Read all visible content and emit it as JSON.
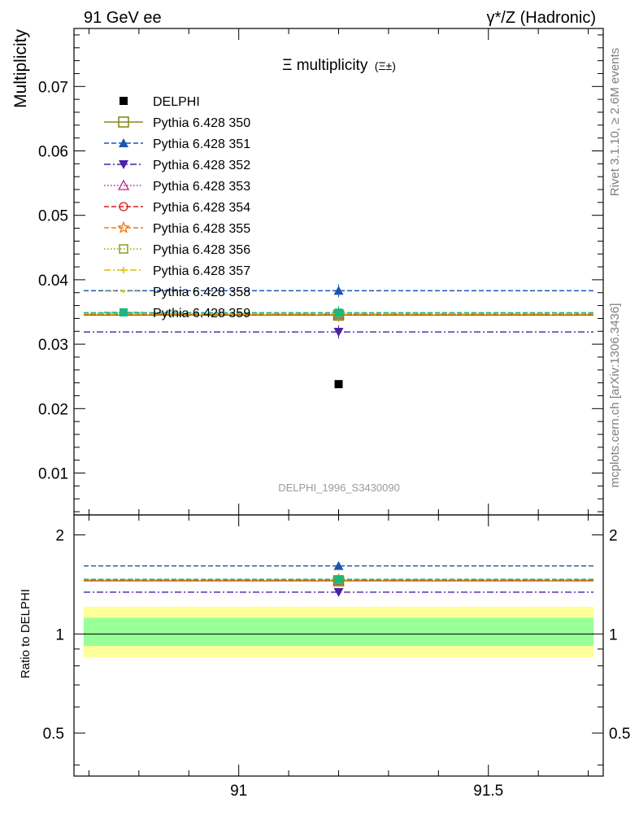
{
  "header": {
    "left": "91 GeV ee",
    "right": "γ*/Z (Hadronic)"
  },
  "side_labels": {
    "rivet": "Rivet 3.1.10, ≥ 2.6M events",
    "mcplots": "mcplots.cern.ch [arXiv:1306.3436]"
  },
  "chart_data": {
    "type": "scatter",
    "title": "Ξ multiplicity",
    "title_suffix": "(Ξ±)",
    "analysis_id": "DELPHI_1996_S3430090",
    "x_range": [
      90.67,
      91.73
    ],
    "x_point": 91.2,
    "main": {
      "ylabel": "Multiplicity",
      "ylim": [
        0.0035,
        0.079
      ],
      "y_ticks": [
        "0.01",
        "0.02",
        "0.03",
        "0.04",
        "0.05",
        "0.06",
        "0.07"
      ],
      "y_tick_values": [
        0.01,
        0.02,
        0.03,
        0.04,
        0.05,
        0.06,
        0.07
      ]
    },
    "ratio": {
      "ylabel": "Ratio to DELPHI",
      "ylim": [
        0.37,
        2.3
      ],
      "y_ticks": [
        "0.5",
        "1",
        "2"
      ],
      "y_tick_values": [
        0.5,
        1.0,
        2.0
      ],
      "band_inner": [
        0.92,
        1.12
      ],
      "band_outer": [
        0.85,
        1.21
      ]
    },
    "x_ticks": [
      "91",
      "91.5"
    ],
    "x_tick_values": [
      91.0,
      91.5
    ],
    "data": {
      "name": "DELPHI",
      "y": 0.0238
    },
    "series": [
      {
        "name": "Pythia 6.428 350",
        "y": 0.0345,
        "ratio": 1.45,
        "color": "#8a8a1a",
        "dash": "solid",
        "marker": "square-open"
      },
      {
        "name": "Pythia 6.428 351",
        "y": 0.0383,
        "ratio": 1.61,
        "color": "#1a56b0",
        "dash": "dashed",
        "marker": "triangle-up"
      },
      {
        "name": "Pythia 6.428 352",
        "y": 0.0319,
        "ratio": 1.34,
        "color": "#4b1fa8",
        "dash": "dashdot",
        "marker": "triangle-down"
      },
      {
        "name": "Pythia 6.428 353",
        "y": 0.0346,
        "ratio": 1.455,
        "color": "#c0208a",
        "dash": "dotted",
        "marker": "triangle-open"
      },
      {
        "name": "Pythia 6.428 354",
        "y": 0.0346,
        "ratio": 1.455,
        "color": "#d81818",
        "dash": "dashed",
        "marker": "circle-open"
      },
      {
        "name": "Pythia 6.428 355",
        "y": 0.0347,
        "ratio": 1.46,
        "color": "#f07818",
        "dash": "dashed",
        "marker": "star-open"
      },
      {
        "name": "Pythia 6.428 356",
        "y": 0.0347,
        "ratio": 1.46,
        "color": "#8aa010",
        "dash": "dotted",
        "marker": "square-open-small"
      },
      {
        "name": "Pythia 6.428 357",
        "y": 0.0347,
        "ratio": 1.46,
        "color": "#d8c000",
        "dash": "dashdot",
        "marker": "cross"
      },
      {
        "name": "Pythia 6.428 358",
        "y": 0.0348,
        "ratio": 1.463,
        "color": "#c8d818",
        "dash": "dotted",
        "marker": "dot"
      },
      {
        "name": "Pythia 6.428 359",
        "y": 0.0349,
        "ratio": 1.466,
        "color": "#18b880",
        "dash": "dashed",
        "marker": "square-filled"
      }
    ],
    "colors": {
      "band_inner": "#99ff99",
      "band_outer": "#ffff99",
      "data_marker": "#000000",
      "side_text": "#7f7f7f"
    }
  }
}
